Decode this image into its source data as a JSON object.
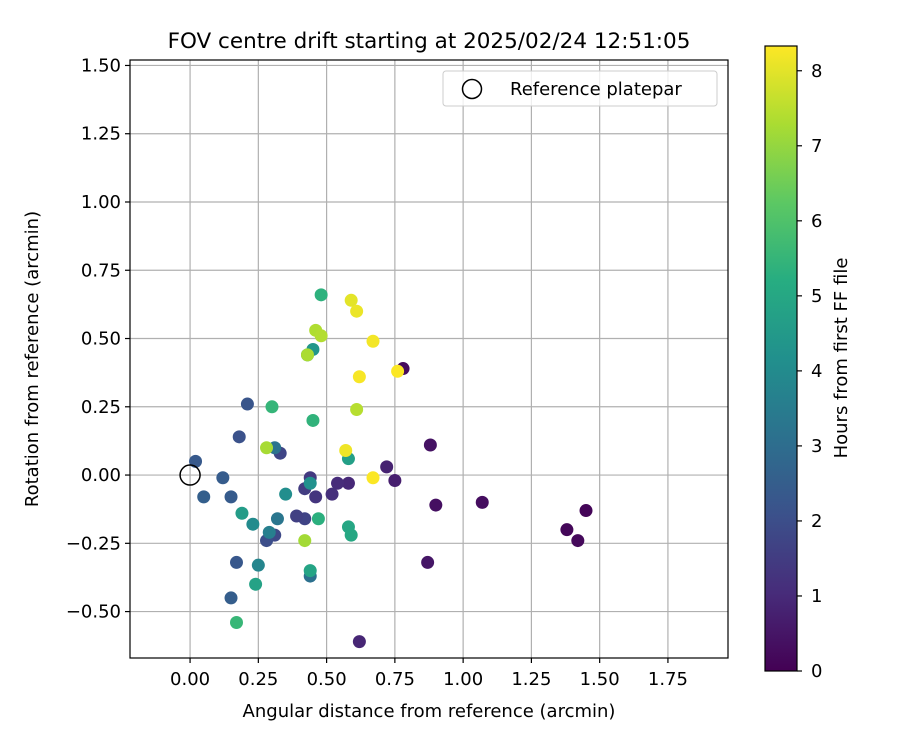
{
  "chart_data": {
    "type": "scatter",
    "title": "FOV centre drift starting at 2025/02/24 12:51:05",
    "xlabel": "Angular distance from reference (arcmin)",
    "ylabel": "Rotation from reference (arcmin)",
    "xlim": [
      -0.22,
      1.97
    ],
    "ylim": [
      -0.67,
      1.52
    ],
    "x_ticks": [
      0.0,
      0.25,
      0.5,
      0.75,
      1.0,
      1.25,
      1.5,
      1.75
    ],
    "x_tick_labels": [
      "0.00",
      "0.25",
      "0.50",
      "0.75",
      "1.00",
      "1.25",
      "1.50",
      "1.75"
    ],
    "y_ticks": [
      -0.5,
      -0.25,
      0.0,
      0.25,
      0.5,
      0.75,
      1.0,
      1.25,
      1.5
    ],
    "y_tick_labels": [
      "−0.50",
      "−0.25",
      "0.00",
      "0.25",
      "0.50",
      "0.75",
      "1.00",
      "1.25",
      "1.50"
    ],
    "grid": true,
    "legend": {
      "placement": "top-right",
      "entries": [
        {
          "label": "Reference platepar",
          "marker": "open-circle"
        }
      ]
    },
    "reference_point": {
      "x": 0.0,
      "y": 0.0
    },
    "colorbar": {
      "label": "Hours from first FF file",
      "colormap": "viridis",
      "range": [
        0,
        8.33
      ],
      "ticks": [
        0,
        1,
        2,
        3,
        4,
        5,
        6,
        7,
        8
      ],
      "tick_labels": [
        "0",
        "1",
        "2",
        "3",
        "4",
        "5",
        "6",
        "7",
        "8"
      ]
    },
    "points": [
      {
        "x": 1.45,
        "y": -0.13,
        "c": 0.1
      },
      {
        "x": 1.38,
        "y": -0.2,
        "c": 0.15
      },
      {
        "x": 1.42,
        "y": -0.24,
        "c": 0.2
      },
      {
        "x": 1.07,
        "y": -0.1,
        "c": 0.3
      },
      {
        "x": 0.9,
        "y": -0.11,
        "c": 0.35
      },
      {
        "x": 0.88,
        "y": 0.11,
        "c": 0.4
      },
      {
        "x": 0.87,
        "y": -0.32,
        "c": 0.5
      },
      {
        "x": 0.78,
        "y": 0.39,
        "c": 0.25
      },
      {
        "x": 0.75,
        "y": -0.02,
        "c": 0.7
      },
      {
        "x": 0.72,
        "y": 0.03,
        "c": 0.8
      },
      {
        "x": 0.62,
        "y": -0.61,
        "c": 0.9
      },
      {
        "x": 0.58,
        "y": -0.03,
        "c": 0.95
      },
      {
        "x": 0.54,
        "y": -0.03,
        "c": 1.05
      },
      {
        "x": 0.52,
        "y": -0.07,
        "c": 1.15
      },
      {
        "x": 0.46,
        "y": -0.08,
        "c": 1.3
      },
      {
        "x": 0.44,
        "y": -0.01,
        "c": 1.4
      },
      {
        "x": 0.42,
        "y": -0.05,
        "c": 1.5
      },
      {
        "x": 0.42,
        "y": -0.16,
        "c": 1.7
      },
      {
        "x": 0.39,
        "y": -0.15,
        "c": 1.6
      },
      {
        "x": 0.33,
        "y": 0.08,
        "c": 1.75
      },
      {
        "x": 0.31,
        "y": -0.22,
        "c": 1.85
      },
      {
        "x": 0.28,
        "y": -0.24,
        "c": 2.0
      },
      {
        "x": 0.21,
        "y": 0.26,
        "c": 2.2
      },
      {
        "x": 0.18,
        "y": 0.14,
        "c": 2.1
      },
      {
        "x": 0.17,
        "y": -0.32,
        "c": 2.3
      },
      {
        "x": 0.15,
        "y": -0.08,
        "c": 2.4
      },
      {
        "x": 0.15,
        "y": -0.45,
        "c": 2.5
      },
      {
        "x": 0.12,
        "y": -0.01,
        "c": 2.45
      },
      {
        "x": 0.05,
        "y": -0.08,
        "c": 2.55
      },
      {
        "x": 0.02,
        "y": 0.05,
        "c": 2.35
      },
      {
        "x": 0.44,
        "y": -0.37,
        "c": 3.1
      },
      {
        "x": 0.32,
        "y": -0.16,
        "c": 3.3
      },
      {
        "x": 0.31,
        "y": 0.1,
        "c": 3.2
      },
      {
        "x": 0.29,
        "y": -0.21,
        "c": 3.6
      },
      {
        "x": 0.25,
        "y": -0.33,
        "c": 3.8
      },
      {
        "x": 0.23,
        "y": -0.18,
        "c": 4.0
      },
      {
        "x": 0.35,
        "y": -0.07,
        "c": 4.1
      },
      {
        "x": 0.44,
        "y": -0.03,
        "c": 4.2
      },
      {
        "x": 0.45,
        "y": 0.46,
        "c": 4.4
      },
      {
        "x": 0.43,
        "y": 0.44,
        "c": 4.5
      },
      {
        "x": 0.19,
        "y": -0.14,
        "c": 4.6
      },
      {
        "x": 0.24,
        "y": -0.4,
        "c": 4.8
      },
      {
        "x": 0.44,
        "y": -0.35,
        "c": 4.9
      },
      {
        "x": 0.58,
        "y": 0.06,
        "c": 4.7
      },
      {
        "x": 0.58,
        "y": -0.19,
        "c": 4.95
      },
      {
        "x": 0.59,
        "y": -0.22,
        "c": 5.0
      },
      {
        "x": 0.47,
        "y": -0.16,
        "c": 5.3
      },
      {
        "x": 0.48,
        "y": 0.66,
        "c": 5.35
      },
      {
        "x": 0.45,
        "y": 0.2,
        "c": 5.4
      },
      {
        "x": 0.3,
        "y": 0.25,
        "c": 5.5
      },
      {
        "x": 0.17,
        "y": -0.54,
        "c": 5.55
      },
      {
        "x": 0.42,
        "y": -0.24,
        "c": 7.2
      },
      {
        "x": 0.43,
        "y": 0.44,
        "c": 7.3
      },
      {
        "x": 0.28,
        "y": 0.1,
        "c": 7.25
      },
      {
        "x": 0.46,
        "y": 0.53,
        "c": 7.35
      },
      {
        "x": 0.48,
        "y": 0.51,
        "c": 7.4
      },
      {
        "x": 0.61,
        "y": 0.24,
        "c": 7.45
      },
      {
        "x": 0.59,
        "y": 0.64,
        "c": 8.0
      },
      {
        "x": 0.61,
        "y": 0.6,
        "c": 8.1
      },
      {
        "x": 0.67,
        "y": 0.49,
        "c": 8.2
      },
      {
        "x": 0.62,
        "y": 0.36,
        "c": 8.25
      },
      {
        "x": 0.76,
        "y": 0.38,
        "c": 8.3
      },
      {
        "x": 0.57,
        "y": 0.09,
        "c": 8.15
      },
      {
        "x": 0.67,
        "y": -0.01,
        "c": 8.3
      }
    ]
  }
}
